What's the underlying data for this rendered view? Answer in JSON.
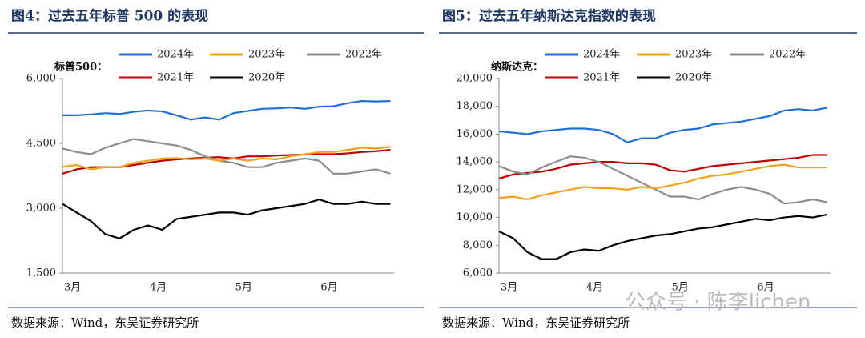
{
  "chart_data": [
    {
      "type": "line",
      "title": "图4：过去五年标普 500 的表现",
      "y_label": "标普500：",
      "source": "数据来源：Wind，东吴证券研究所",
      "categories": [
        "3月",
        null,
        null,
        null,
        null,
        null,
        "4月",
        null,
        null,
        null,
        null,
        null,
        "5月",
        null,
        null,
        null,
        null,
        null,
        "6月",
        null,
        null,
        null,
        null,
        null
      ],
      "ylim": [
        1500,
        6000
      ],
      "yticks": [
        {
          "value": 1500,
          "label": "1,500"
        },
        {
          "value": 3000,
          "label": "3,000"
        },
        {
          "value": 4500,
          "label": "4,500"
        },
        {
          "value": 6000,
          "label": "6,000"
        }
      ],
      "series": [
        {
          "name": "2024年",
          "color": "#1f6fd6",
          "values": [
            5150,
            5150,
            5170,
            5200,
            5180,
            5230,
            5260,
            5240,
            5150,
            5050,
            5100,
            5050,
            5200,
            5250,
            5300,
            5310,
            5330,
            5300,
            5350,
            5360,
            5430,
            5480,
            5470,
            5480
          ]
        },
        {
          "name": "2023年",
          "color": "#f0a21e",
          "values": [
            3960,
            4000,
            3900,
            3950,
            3950,
            4050,
            4100,
            4150,
            4160,
            4130,
            4150,
            4100,
            4150,
            4100,
            4150,
            4130,
            4200,
            4250,
            4300,
            4300,
            4350,
            4400,
            4380,
            4420
          ]
        },
        {
          "name": "2022年",
          "color": "#8c8c8c",
          "values": [
            4380,
            4300,
            4250,
            4400,
            4500,
            4600,
            4550,
            4500,
            4450,
            4350,
            4200,
            4100,
            4050,
            3950,
            3950,
            4050,
            4100,
            4150,
            4100,
            3800,
            3800,
            3850,
            3900,
            3800
          ]
        },
        {
          "name": "2021年",
          "color": "#c00000",
          "values": [
            3800,
            3900,
            3950,
            3950,
            3950,
            4000,
            4050,
            4100,
            4130,
            4150,
            4170,
            4180,
            4150,
            4200,
            4200,
            4220,
            4230,
            4240,
            4250,
            4250,
            4270,
            4300,
            4320,
            4350
          ]
        },
        {
          "name": "2020年",
          "color": "#000000",
          "values": [
            3100,
            2900,
            2700,
            2400,
            2300,
            2500,
            2600,
            2500,
            2750,
            2800,
            2850,
            2900,
            2900,
            2850,
            2950,
            3000,
            3050,
            3100,
            3200,
            3100,
            3100,
            3150,
            3100,
            3100
          ]
        }
      ]
    },
    {
      "type": "line",
      "title": "图5：过去五年纳斯达克指数的表现",
      "y_label": "纳斯达克：",
      "source": "数据来源：Wind，东吴证券研究所",
      "watermark": "公众号 · 陈李lichen",
      "categories": [
        "3月",
        null,
        null,
        null,
        null,
        null,
        "4月",
        null,
        null,
        null,
        null,
        null,
        "5月",
        null,
        null,
        null,
        null,
        null,
        "6月",
        null,
        null,
        null,
        null,
        null
      ],
      "ylim": [
        6000,
        20000
      ],
      "yticks": [
        {
          "value": 6000,
          "label": "6,000"
        },
        {
          "value": 8000,
          "label": "8,000"
        },
        {
          "value": 10000,
          "label": "10,000"
        },
        {
          "value": 12000,
          "label": "12,000"
        },
        {
          "value": 14000,
          "label": "14,000"
        },
        {
          "value": 16000,
          "label": "16,000"
        },
        {
          "value": 18000,
          "label": "18,000"
        },
        {
          "value": 20000,
          "label": "20,000"
        }
      ],
      "series": [
        {
          "name": "2024年",
          "color": "#1f6fd6",
          "values": [
            16200,
            16100,
            16000,
            16200,
            16300,
            16400,
            16400,
            16300,
            16000,
            15400,
            15700,
            15700,
            16100,
            16300,
            16400,
            16700,
            16800,
            16900,
            17100,
            17300,
            17700,
            17800,
            17700,
            17900
          ]
        },
        {
          "name": "2023年",
          "color": "#f0a21e",
          "values": [
            11400,
            11500,
            11300,
            11600,
            11800,
            12000,
            12200,
            12100,
            12100,
            12000,
            12200,
            12100,
            12300,
            12500,
            12800,
            13000,
            13100,
            13300,
            13500,
            13700,
            13800,
            13600,
            13600,
            13600
          ]
        },
        {
          "name": "2022年",
          "color": "#8c8c8c",
          "values": [
            13700,
            13300,
            13100,
            13600,
            14000,
            14400,
            14300,
            14000,
            13500,
            13000,
            12500,
            12000,
            11500,
            11500,
            11300,
            11700,
            12000,
            12200,
            12000,
            11700,
            11000,
            11100,
            11300,
            11100
          ]
        },
        {
          "name": "2021年",
          "color": "#c00000",
          "values": [
            12800,
            13100,
            13200,
            13300,
            13500,
            13800,
            13900,
            14000,
            14000,
            13900,
            13900,
            13800,
            13400,
            13300,
            13500,
            13700,
            13800,
            13900,
            14000,
            14100,
            14200,
            14300,
            14500,
            14500
          ]
        },
        {
          "name": "2020年",
          "color": "#000000",
          "values": [
            9000,
            8500,
            7500,
            7000,
            7000,
            7500,
            7700,
            7600,
            8000,
            8300,
            8500,
            8700,
            8800,
            9000,
            9200,
            9300,
            9500,
            9700,
            9900,
            9800,
            10000,
            10100,
            10000,
            10200
          ]
        }
      ]
    }
  ]
}
